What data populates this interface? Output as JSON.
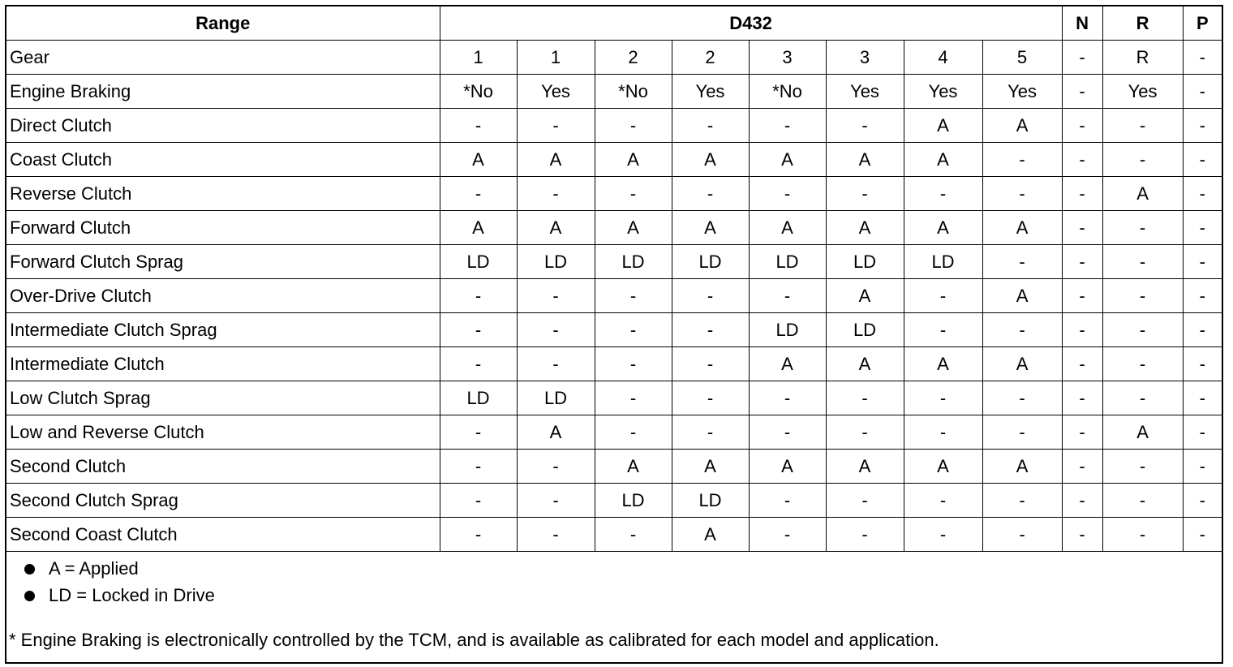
{
  "header": {
    "range": "Range",
    "d432": "D432",
    "n": "N",
    "r": "R",
    "p": "P"
  },
  "rows": [
    {
      "label": "Gear",
      "cells": [
        "1",
        "1",
        "2",
        "2",
        "3",
        "3",
        "4",
        "5",
        "-",
        "R",
        "-"
      ]
    },
    {
      "label": "Engine Braking",
      "cells": [
        "*No",
        "Yes",
        "*No",
        "Yes",
        "*No",
        "Yes",
        "Yes",
        "Yes",
        "-",
        "Yes",
        "-"
      ]
    },
    {
      "label": "Direct Clutch",
      "cells": [
        "-",
        "-",
        "-",
        "-",
        "-",
        "-",
        "A",
        "A",
        "-",
        "-",
        "-"
      ]
    },
    {
      "label": "Coast Clutch",
      "cells": [
        "A",
        "A",
        "A",
        "A",
        "A",
        "A",
        "A",
        "-",
        "-",
        "-",
        "-"
      ]
    },
    {
      "label": "Reverse Clutch",
      "cells": [
        "-",
        "-",
        "-",
        "-",
        "-",
        "-",
        "-",
        "-",
        "-",
        "A",
        "-"
      ]
    },
    {
      "label": "Forward Clutch",
      "cells": [
        "A",
        "A",
        "A",
        "A",
        "A",
        "A",
        "A",
        "A",
        "-",
        "-",
        "-"
      ]
    },
    {
      "label": "Forward Clutch Sprag",
      "cells": [
        "LD",
        "LD",
        "LD",
        "LD",
        "LD",
        "LD",
        "LD",
        "-",
        "-",
        "-",
        "-"
      ]
    },
    {
      "label": "Over-Drive Clutch",
      "cells": [
        "-",
        "-",
        "-",
        "-",
        "-",
        "A",
        "-",
        "A",
        "-",
        "-",
        "-"
      ]
    },
    {
      "label": "Intermediate Clutch Sprag",
      "cells": [
        "-",
        "-",
        "-",
        "-",
        "LD",
        "LD",
        "-",
        "-",
        "-",
        "-",
        "-"
      ]
    },
    {
      "label": "Intermediate Clutch",
      "cells": [
        "-",
        "-",
        "-",
        "-",
        "A",
        "A",
        "A",
        "A",
        "-",
        "-",
        "-"
      ]
    },
    {
      "label": "Low Clutch Sprag",
      "cells": [
        "LD",
        "LD",
        "-",
        "-",
        "-",
        "-",
        "-",
        "-",
        "-",
        "-",
        "-"
      ]
    },
    {
      "label": "Low and Reverse Clutch",
      "cells": [
        "-",
        "A",
        "-",
        "-",
        "-",
        "-",
        "-",
        "-",
        "-",
        "A",
        "-"
      ]
    },
    {
      "label": "Second Clutch",
      "cells": [
        "-",
        "-",
        "A",
        "A",
        "A",
        "A",
        "A",
        "A",
        "-",
        "-",
        "-"
      ]
    },
    {
      "label": "Second Clutch Sprag",
      "cells": [
        "-",
        "-",
        "LD",
        "LD",
        "-",
        "-",
        "-",
        "-",
        "-",
        "-",
        "-"
      ]
    },
    {
      "label": "Second Coast Clutch",
      "cells": [
        "-",
        "-",
        "-",
        "A",
        "-",
        "-",
        "-",
        "-",
        "-",
        "-",
        "-"
      ]
    }
  ],
  "legend": [
    "A = Applied",
    "LD = Locked in Drive"
  ],
  "footnote": "* Engine Braking is electronically controlled by the TCM, and is available as calibrated for each model and application."
}
